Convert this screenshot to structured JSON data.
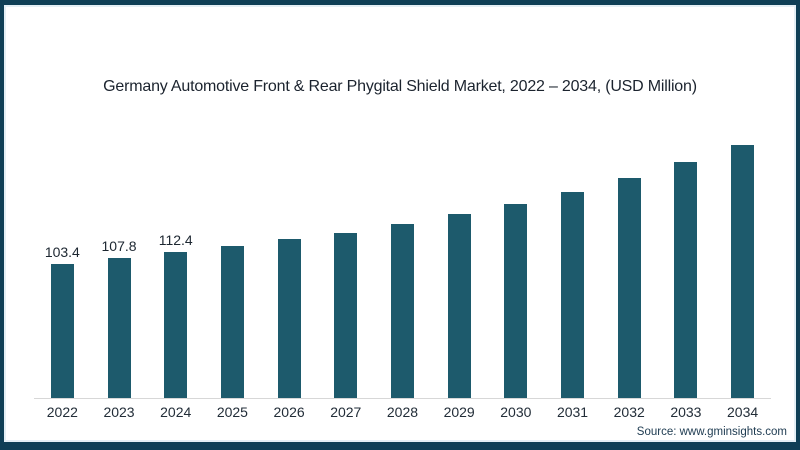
{
  "chart_data": {
    "type": "bar",
    "title": "Germany Automotive Front & Rear Phygital Shield Market, 2022 – 2034, (USD Million)",
    "categories": [
      "2022",
      "2023",
      "2024",
      "2025",
      "2026",
      "2027",
      "2028",
      "2029",
      "2030",
      "2031",
      "2032",
      "2033",
      "2034"
    ],
    "values": [
      103.4,
      107.8,
      112.4,
      117.2,
      122.5,
      127.3,
      134.0,
      141.5,
      149.5,
      158.7,
      169.5,
      181.8,
      194.9
    ],
    "value_labels": [
      "103.4",
      "107.8",
      "112.4",
      "",
      "",
      "",
      "",
      "",
      "",
      "",
      "",
      "",
      ""
    ],
    "xlabel": "",
    "ylabel": "",
    "ylim": [
      0,
      210
    ],
    "grid": false,
    "legend": false,
    "bar_color": "#1d5a6c",
    "axis_line_color": "#d7d7d7",
    "frame_border_color": "#0f3f56",
    "title_color": "#1b232e",
    "label_color": "#1c2630"
  },
  "source": {
    "text": "Source: www.gminsights.com"
  }
}
